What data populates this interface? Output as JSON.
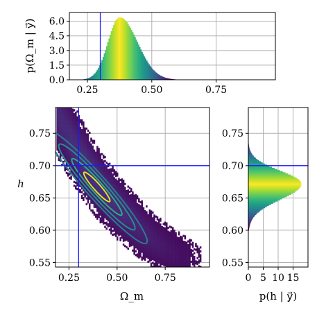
{
  "chart_data": [
    {
      "type": "histogram",
      "panel": "top-marginal",
      "ylabel": "p(Ω_m | y⃗)",
      "xlim": [
        0.18,
        0.98
      ],
      "ylim": [
        0,
        6.9
      ],
      "xticks": [
        "0.25",
        "0.50",
        "0.75"
      ],
      "xtick_values": [
        0.25,
        0.5,
        0.75
      ],
      "yticks": [
        "0.0",
        "1.5",
        "3.0",
        "4.5",
        "6.0"
      ],
      "ytick_values": [
        0,
        1.5,
        3.0,
        4.5,
        6.0
      ],
      "grid": true,
      "reference_line_x": 0.3,
      "distribution": {
        "mode": 0.375,
        "peak_density": 6.4,
        "support": [
          0.22,
          0.7
        ]
      },
      "colormap": "viridis"
    },
    {
      "type": "heatmap",
      "panel": "joint",
      "xlabel": "Ω_m",
      "ylabel": "h",
      "xlim": [
        0.18,
        0.98
      ],
      "ylim": [
        0.543,
        0.79
      ],
      "xticks": [
        "0.25",
        "0.50",
        "0.75"
      ],
      "xtick_values": [
        0.25,
        0.5,
        0.75
      ],
      "yticks": [
        "0.55",
        "0.60",
        "0.65",
        "0.70",
        "0.75"
      ],
      "ytick_values": [
        0.55,
        0.6,
        0.65,
        0.7,
        0.75
      ],
      "grid": true,
      "reference_lines": {
        "x": 0.3,
        "y": 0.7
      },
      "samples_ridge": [
        [
          0.2,
          0.77
        ],
        [
          0.3,
          0.715
        ],
        [
          0.4,
          0.67
        ],
        [
          0.5,
          0.635
        ],
        [
          0.6,
          0.605
        ],
        [
          0.7,
          0.58
        ],
        [
          0.8,
          0.562
        ],
        [
          0.88,
          0.55
        ]
      ],
      "contour_levels": 4,
      "colormap": "viridis"
    },
    {
      "type": "histogram",
      "panel": "right-marginal",
      "orientation": "horizontal",
      "xlabel": "p(h | y⃗)",
      "xlim": [
        0,
        20
      ],
      "ylim": [
        0.543,
        0.79
      ],
      "xticks": [
        "0",
        "5",
        "10",
        "15"
      ],
      "xtick_values": [
        0,
        5,
        10,
        15
      ],
      "yticks": [
        "0.55",
        "0.60",
        "0.65",
        "0.70",
        "0.75"
      ],
      "ytick_values": [
        0.55,
        0.6,
        0.65,
        0.7,
        0.75
      ],
      "grid": true,
      "reference_line_y": 0.7,
      "distribution": {
        "mode": 0.672,
        "peak_density": 17.8,
        "support": [
          0.605,
          0.74
        ]
      },
      "colormap": "viridis"
    }
  ]
}
